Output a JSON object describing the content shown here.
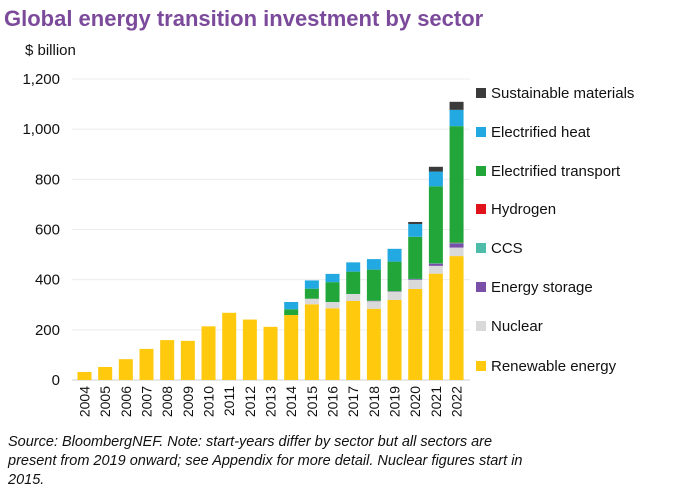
{
  "chart_data": {
    "type": "bar",
    "stacked": true,
    "title": "Global energy transition investment by sector",
    "ylabel": "$ billion",
    "xlabel": "",
    "ylim": [
      0,
      1200
    ],
    "yticks": [
      0,
      200,
      400,
      600,
      800,
      1000,
      1200
    ],
    "ytick_labels": [
      "0",
      "200",
      "400",
      "600",
      "800",
      "1,000",
      "1,200"
    ],
    "grid": true,
    "legend_position": "right",
    "categories": [
      "2004",
      "2005",
      "2006",
      "2007",
      "2008",
      "2009",
      "2010",
      "2011",
      "2012",
      "2013",
      "2014",
      "2015",
      "2016",
      "2017",
      "2018",
      "2019",
      "2020",
      "2021",
      "2022"
    ],
    "series": [
      {
        "name": "Renewable energy",
        "color": "#ffc90e",
        "values": [
          32,
          52,
          83,
          124,
          159,
          156,
          214,
          268,
          241,
          212,
          259,
          302,
          286,
          315,
          284,
          319,
          363,
          424,
          494
        ]
      },
      {
        "name": "Nuclear",
        "color": "#d9d9d9",
        "values": [
          0,
          0,
          0,
          0,
          0,
          0,
          0,
          0,
          0,
          0,
          0,
          22,
          25,
          28,
          30,
          33,
          36,
          31,
          34
        ]
      },
      {
        "name": "Energy storage",
        "color": "#7a4fa8",
        "values": [
          0,
          0,
          0,
          0,
          0,
          0,
          0,
          0,
          0,
          0,
          0,
          0,
          0,
          0,
          2,
          2,
          3,
          9,
          16
        ]
      },
      {
        "name": "CCS",
        "color": "#4dbdaa",
        "values": [
          0,
          0,
          0,
          0,
          0,
          0,
          0,
          0,
          0,
          0,
          0,
          0,
          0,
          0,
          0,
          0,
          1,
          1,
          3
        ]
      },
      {
        "name": "Hydrogen",
        "color": "#e0121b",
        "values": [
          0,
          0,
          0,
          0,
          0,
          0,
          0,
          0,
          0,
          0,
          0,
          0,
          0,
          0,
          0,
          0,
          0,
          0,
          1
        ]
      },
      {
        "name": "Electrified transport",
        "color": "#22a63a",
        "values": [
          0,
          0,
          0,
          0,
          0,
          0,
          0,
          0,
          0,
          0,
          23,
          40,
          79,
          89,
          124,
          118,
          168,
          307,
          464
        ]
      },
      {
        "name": "Electrified heat",
        "color": "#23a9e1",
        "values": [
          0,
          0,
          0,
          0,
          0,
          0,
          0,
          0,
          0,
          0,
          29,
          33,
          33,
          37,
          42,
          51,
          51,
          59,
          65
        ]
      },
      {
        "name": "Sustainable materials",
        "color": "#3b3b3b",
        "values": [
          0,
          0,
          0,
          0,
          0,
          0,
          0,
          0,
          0,
          0,
          0,
          0,
          0,
          0,
          0,
          0,
          8,
          19,
          32
        ]
      }
    ],
    "annotations": [
      "Source: BloombergNEF. Note: start-years differ by sector but all sectors are",
      "present from 2019 onward; see Appendix for more detail. Nuclear figures start in",
      "2015."
    ]
  }
}
